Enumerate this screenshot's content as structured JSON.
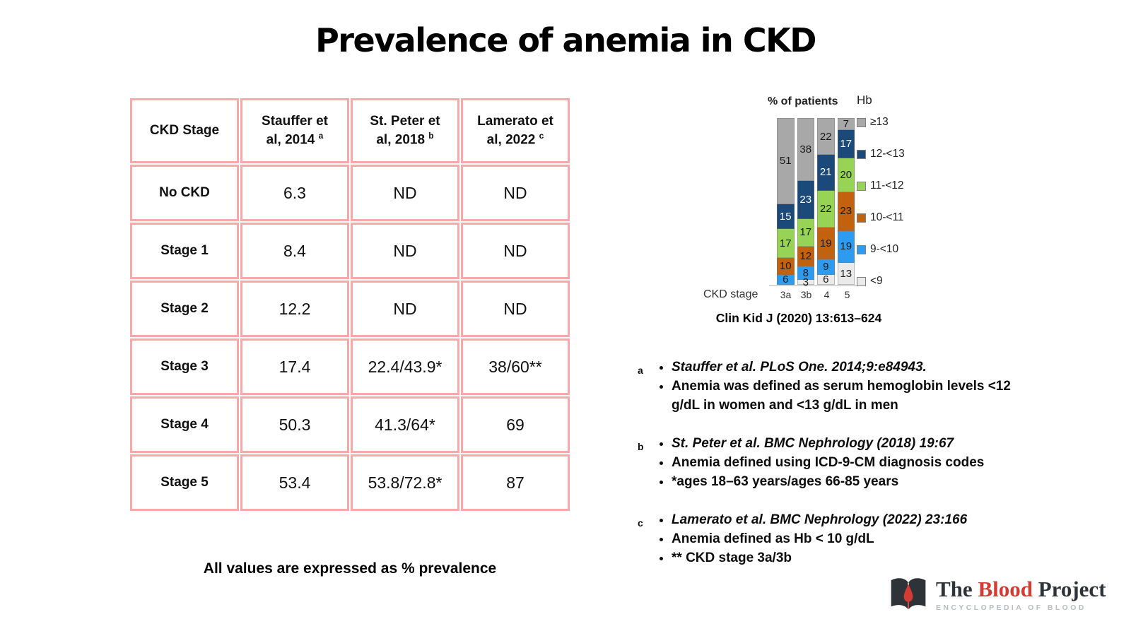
{
  "title": "Prevalence of anemia in CKD",
  "table": {
    "columns": [
      {
        "label": "CKD Stage",
        "sup": ""
      },
      {
        "label": "Stauffer et al,  2014",
        "sup": "a"
      },
      {
        "label": "St. Peter et al, 2018",
        "sup": "b"
      },
      {
        "label": "Lamerato et al, 2022",
        "sup": "c"
      }
    ],
    "rows": [
      {
        "stage": "No CKD",
        "values": [
          "6.3",
          "ND",
          "ND"
        ]
      },
      {
        "stage": "Stage 1",
        "values": [
          "8.4",
          "ND",
          "ND"
        ]
      },
      {
        "stage": "Stage 2",
        "values": [
          "12.2",
          "ND",
          "ND"
        ]
      },
      {
        "stage": "Stage 3",
        "values": [
          "17.4",
          "22.4/43.9*",
          "38/60**"
        ]
      },
      {
        "stage": "Stage 4",
        "values": [
          "50.3",
          "41.3/64*",
          "69"
        ]
      },
      {
        "stage": "Stage 5",
        "values": [
          "53.4",
          "53.8/72.8*",
          "87"
        ]
      }
    ],
    "note": "All values are expressed as % prevalence",
    "border_color": "#f7a8a8"
  },
  "chart_data": {
    "type": "bar",
    "subtype": "stacked-100-percent",
    "title": "% of patients",
    "legend_title": "Hb",
    "xlabel": "CKD stage",
    "categories": [
      "3a",
      "3b",
      "4",
      "5"
    ],
    "series": [
      {
        "name": "≥13",
        "color": "#a8a8a8",
        "text_color": "#1a1a1a",
        "values": [
          51,
          38,
          22,
          7
        ]
      },
      {
        "name": "12-<13",
        "color": "#1b4a7a",
        "text_color": "#ffffff",
        "values": [
          15,
          23,
          21,
          17
        ]
      },
      {
        "name": "11-<12",
        "color": "#97d456",
        "text_color": "#1a1a1a",
        "values": [
          17,
          17,
          22,
          20
        ]
      },
      {
        "name": "10-<11",
        "color": "#c2620f",
        "text_color": "#1a1a1a",
        "values": [
          10,
          12,
          19,
          23
        ]
      },
      {
        "name": "9-<10",
        "color": "#2d9bf0",
        "text_color": "#1a1a1a",
        "values": [
          6,
          8,
          9,
          19
        ]
      },
      {
        "name": "<9",
        "color": "#eaeaea",
        "text_color": "#1a1a1a",
        "values": [
          0,
          3,
          6,
          13
        ]
      }
    ],
    "ylim": [
      0,
      100
    ],
    "legend_position": "right",
    "citation": "Clin Kid J (2020) 13:613–624"
  },
  "footnotes": [
    {
      "marker": "a",
      "items": [
        {
          "text": "Stauffer et al. PLoS One. 2014;9:e84943.",
          "style": "ref"
        },
        {
          "text": "Anemia was defined as serum hemoglobin levels <12 g/dL in women and <13 g/dL in men",
          "style": "plain"
        }
      ]
    },
    {
      "marker": "b",
      "items": [
        {
          "text": "St. Peter et al. BMC Nephrology (2018) 19:67",
          "style": "ref"
        },
        {
          "text": "Anemia defined using ICD-9-CM diagnosis codes",
          "style": "plain"
        },
        {
          "text": "*ages 18–63 years/ages 66-85 years",
          "style": "plain"
        }
      ]
    },
    {
      "marker": "c",
      "items": [
        {
          "text": "Lamerato et al. BMC Nephrology (2022) 23:166",
          "style": "ref"
        },
        {
          "text": "Anemia defined as Hb < 10 g/dL",
          "style": "plain"
        },
        {
          "text": "** CKD stage 3a/3b",
          "style": "plain"
        }
      ]
    }
  ],
  "logo": {
    "word1": "The",
    "word2": "Blood",
    "word3": "Project",
    "subtitle": "ENCYCLOPEDIA OF BLOOD",
    "accent_color": "#d23c34",
    "dark_color": "#2e3338"
  }
}
